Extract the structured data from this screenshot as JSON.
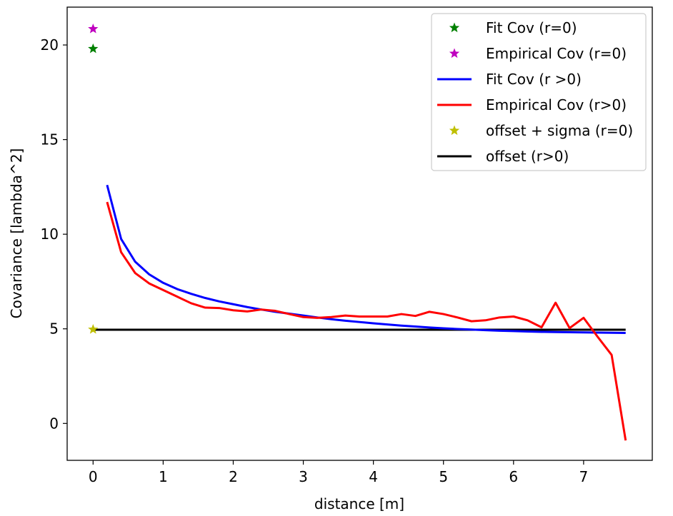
{
  "chart_data": {
    "type": "line",
    "title": "",
    "xlabel": "distance [m]",
    "ylabel": "Covariance [lambda^2]",
    "xlim": [
      -0.37,
      7.98
    ],
    "ylim": [
      -1.95,
      22.0
    ],
    "xticks": [
      0,
      1,
      2,
      3,
      4,
      5,
      6,
      7
    ],
    "yticks": [
      0,
      5,
      10,
      15,
      20
    ],
    "xtick_labels": [
      "0",
      "1",
      "2",
      "3",
      "4",
      "5",
      "6",
      "7"
    ],
    "ytick_labels": [
      "0",
      "5",
      "10",
      "15",
      "20"
    ],
    "grid": false,
    "legend_position": "top-right",
    "series": [
      {
        "name": "Fit Cov (r=0)",
        "kind": "marker",
        "marker": "star",
        "color": "#008000",
        "x": [
          0
        ],
        "y": [
          19.8
        ]
      },
      {
        "name": "Empirical Cov (r=0)",
        "kind": "marker",
        "marker": "star",
        "color": "#bf00bf",
        "x": [
          0
        ],
        "y": [
          20.85
        ]
      },
      {
        "name": "Fit Cov (r >0)",
        "kind": "line",
        "color": "#0000ff",
        "x": [
          0.2,
          0.4,
          0.6,
          0.8,
          1.0,
          1.2,
          1.4,
          1.6,
          1.8,
          2.0,
          2.2,
          2.4,
          2.6,
          2.8,
          3.0,
          3.2,
          3.4,
          3.6,
          3.8,
          4.0,
          4.2,
          4.4,
          4.6,
          4.8,
          5.0,
          5.2,
          5.4,
          5.6,
          5.8,
          6.0,
          6.2,
          6.4,
          6.6,
          6.8,
          7.0,
          7.2,
          7.4,
          7.6
        ],
        "y": [
          12.6,
          9.75,
          8.55,
          7.88,
          7.43,
          7.1,
          6.85,
          6.63,
          6.45,
          6.3,
          6.15,
          6.02,
          5.9,
          5.8,
          5.7,
          5.6,
          5.51,
          5.43,
          5.36,
          5.29,
          5.23,
          5.17,
          5.12,
          5.07,
          5.03,
          4.99,
          4.96,
          4.93,
          4.9,
          4.88,
          4.86,
          4.84,
          4.83,
          4.82,
          4.81,
          4.8,
          4.79,
          4.78
        ]
      },
      {
        "name": "Empirical Cov (r>0)",
        "kind": "line",
        "color": "#ff0000",
        "x": [
          0.2,
          0.4,
          0.6,
          0.8,
          1.0,
          1.2,
          1.4,
          1.6,
          1.8,
          2.0,
          2.2,
          2.4,
          2.6,
          2.8,
          3.0,
          3.2,
          3.4,
          3.6,
          3.8,
          4.0,
          4.2,
          4.4,
          4.6,
          4.8,
          5.0,
          5.2,
          5.4,
          5.6,
          5.8,
          6.0,
          6.2,
          6.4,
          6.6,
          6.8,
          7.0,
          7.2,
          7.4,
          7.6
        ],
        "y": [
          11.7,
          9.05,
          7.95,
          7.4,
          7.05,
          6.7,
          6.35,
          6.12,
          6.1,
          5.98,
          5.92,
          6.02,
          5.95,
          5.78,
          5.62,
          5.58,
          5.62,
          5.7,
          5.65,
          5.65,
          5.65,
          5.78,
          5.68,
          5.9,
          5.78,
          5.6,
          5.4,
          5.45,
          5.6,
          5.65,
          5.45,
          5.08,
          6.38,
          5.04,
          5.58,
          4.58,
          3.62,
          -0.9
        ]
      },
      {
        "name": "offset + sigma (r=0)",
        "kind": "marker",
        "marker": "star",
        "color": "#bfbf00",
        "x": [
          0
        ],
        "y": [
          4.97
        ]
      },
      {
        "name": "offset (r>0)",
        "kind": "line",
        "color": "#000000",
        "x": [
          0,
          7.6
        ],
        "y": [
          4.95,
          4.95
        ]
      }
    ]
  }
}
